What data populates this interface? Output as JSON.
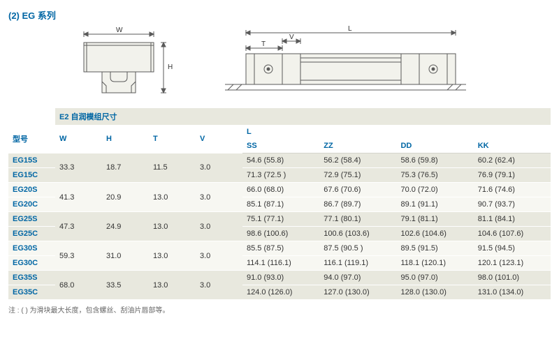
{
  "title": "(2) EG 系列",
  "section_header": "E2 自润模组尺寸",
  "headers": {
    "model": "型号",
    "W": "W",
    "H": "H",
    "T": "T",
    "V": "V",
    "L": "L",
    "SS": "SS",
    "ZZ": "ZZ",
    "DD": "DD",
    "KK": "KK"
  },
  "diagram_labels": {
    "W": "W",
    "H": "H",
    "T": "T",
    "V": "V",
    "L": "L"
  },
  "groups": [
    {
      "W": "33.3",
      "H": "18.7",
      "T": "11.5",
      "V": "3.0",
      "rows": [
        {
          "model": "EG15S",
          "SS": "54.6 (55.8)",
          "ZZ": "56.2 (58.4)",
          "DD": "58.6 (59.8)",
          "KK": "60.2 (62.4)"
        },
        {
          "model": "EG15C",
          "SS": "71.3 (72.5 )",
          "ZZ": "72.9 (75.1)",
          "DD": "75.3 (76.5)",
          "KK": "76.9 (79.1)"
        }
      ]
    },
    {
      "W": "41.3",
      "H": "20.9",
      "T": "13.0",
      "V": "3.0",
      "rows": [
        {
          "model": "EG20S",
          "SS": "66.0 (68.0)",
          "ZZ": "67.6 (70.6)",
          "DD": "70.0 (72.0)",
          "KK": "71.6 (74.6)"
        },
        {
          "model": "EG20C",
          "SS": "85.1 (87.1)",
          "ZZ": "86.7 (89.7)",
          "DD": "89.1 (91.1)",
          "KK": "90.7 (93.7)"
        }
      ]
    },
    {
      "W": "47.3",
      "H": "24.9",
      "T": "13.0",
      "V": "3.0",
      "rows": [
        {
          "model": "EG25S",
          "SS": "75.1 (77.1)",
          "ZZ": "77.1 (80.1)",
          "DD": "79.1 (81.1)",
          "KK": "81.1 (84.1)"
        },
        {
          "model": "EG25C",
          "SS": "98.6 (100.6)",
          "ZZ": "100.6 (103.6)",
          "DD": "102.6 (104.6)",
          "KK": "104.6 (107.6)"
        }
      ]
    },
    {
      "W": "59.3",
      "H": "31.0",
      "T": "13.0",
      "V": "3.0",
      "rows": [
        {
          "model": "EG30S",
          "SS": "85.5 (87.5)",
          "ZZ": "87.5 (90.5 )",
          "DD": "89.5 (91.5)",
          "KK": "91.5 (94.5)"
        },
        {
          "model": "EG30C",
          "SS": "114.1 (116.1)",
          "ZZ": "116.1 (119.1)",
          "DD": "118.1 (120.1)",
          "KK": "120.1 (123.1)"
        }
      ]
    },
    {
      "W": "68.0",
      "H": "33.5",
      "T": "13.0",
      "V": "3.0",
      "rows": [
        {
          "model": "EG35S",
          "SS": "91.0 (93.0)",
          "ZZ": "94.0 (97.0)",
          "DD": "95.0 (97.0)",
          "KK": "98.0 (101.0)"
        },
        {
          "model": "EG35C",
          "SS": "124.0 (126.0)",
          "ZZ": "127.0 (130.0)",
          "DD": "128.0 (130.0)",
          "KK": "131.0 (134.0)"
        }
      ]
    }
  ],
  "footnote": "注 : ( ) 为滑块最大长度，包含螺丝、刮油片唇部等。",
  "colors": {
    "accent": "#0066a4",
    "band_odd": "#e8e8de",
    "band_even": "#f7f7f2",
    "stroke": "#5a5a5a"
  }
}
